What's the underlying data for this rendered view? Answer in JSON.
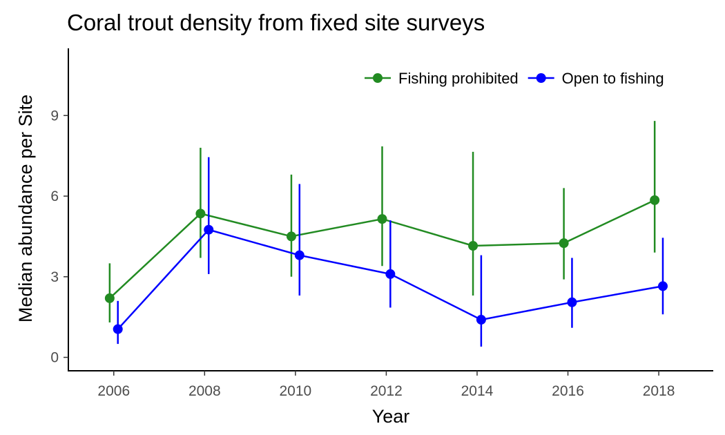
{
  "chart_data": {
    "type": "line",
    "title": "Coral trout density from fixed site surveys",
    "xlabel": "Year",
    "ylabel": "Median abundance per Site",
    "x": [
      2006,
      2008,
      2010,
      2012,
      2014,
      2016,
      2018
    ],
    "xlim": [
      2005,
      2019.2
    ],
    "ylim": [
      -0.5,
      11.5
    ],
    "x_ticks": [
      2006,
      2008,
      2010,
      2012,
      2014,
      2016,
      2018
    ],
    "y_ticks": [
      0,
      3,
      6,
      9
    ],
    "grid": false,
    "legend_position": "top-right",
    "series": [
      {
        "name": "Fishing prohibited",
        "color": "#228B22",
        "values": [
          2.2,
          5.35,
          4.5,
          5.15,
          4.15,
          4.25,
          5.85
        ],
        "lower": [
          1.3,
          3.7,
          3.0,
          3.4,
          2.3,
          2.9,
          3.9
        ],
        "upper": [
          3.5,
          7.8,
          6.8,
          7.85,
          7.65,
          6.3,
          8.8
        ]
      },
      {
        "name": "Open to fishing",
        "color": "#0000FF",
        "values": [
          1.05,
          4.75,
          3.8,
          3.1,
          1.4,
          2.05,
          2.65
        ],
        "lower": [
          0.5,
          3.1,
          2.3,
          1.85,
          0.4,
          1.1,
          1.6
        ],
        "upper": [
          2.1,
          7.45,
          6.45,
          5.1,
          3.8,
          3.7,
          4.45
        ]
      }
    ]
  }
}
